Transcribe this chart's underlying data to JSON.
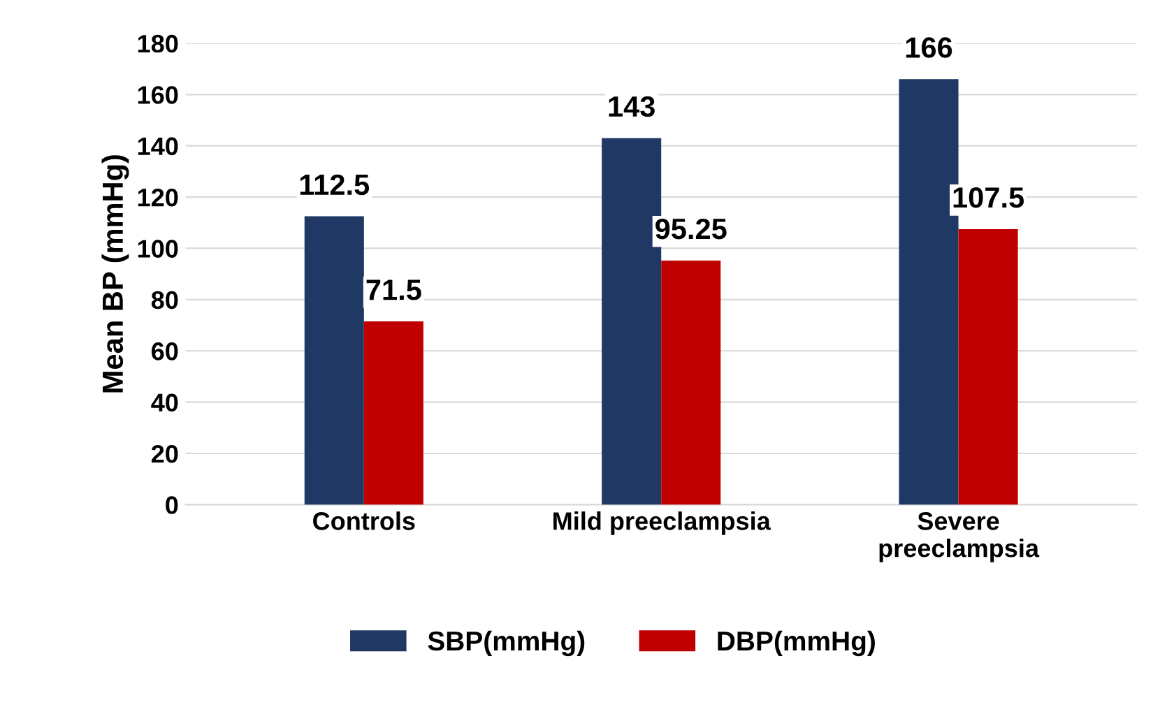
{
  "chart_data": {
    "type": "bar",
    "ylabel": "Mean BP (mmHg)",
    "categories": [
      "Controls",
      "Mild preeclampsia",
      "Severe\npreeclampsia"
    ],
    "series": [
      {
        "name": "SBP(mmHg)",
        "color": "#1f3864",
        "values": [
          112.5,
          143,
          166
        ]
      },
      {
        "name": "DBP(mmHg)",
        "color": "#c00000",
        "values": [
          71.5,
          95.25,
          107.5
        ]
      }
    ],
    "ylim": [
      0,
      180
    ],
    "yticks": [
      0,
      20,
      40,
      60,
      80,
      100,
      120,
      140,
      160,
      180
    ],
    "grid": "y",
    "legend": "bottom",
    "data_labels": true
  }
}
